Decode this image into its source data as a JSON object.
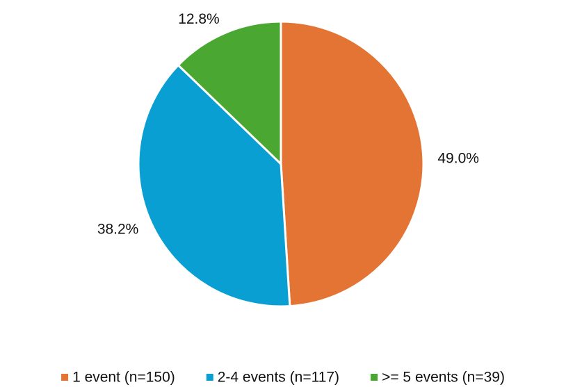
{
  "chart_data": {
    "type": "pie",
    "categories": [
      "1 event (n=150)",
      "2-4 events (n=117)",
      ">= 5 events (n=39)"
    ],
    "values": [
      49.0,
      38.2,
      12.8
    ],
    "value_labels": [
      "49.0%",
      "38.2%",
      "12.8%"
    ],
    "colors": [
      "#e37434",
      "#0a9fd3",
      "#4aa832"
    ],
    "legend": "bottom"
  }
}
